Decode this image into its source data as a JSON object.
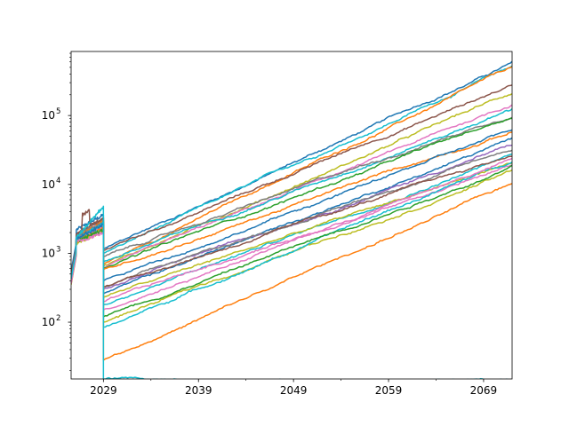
{
  "chart_data": {
    "type": "line",
    "title": "",
    "xlabel": "",
    "ylabel": "",
    "xlim": [
      2025.6,
      2072.0
    ],
    "yscale": "log",
    "ylim": [
      15,
      850000
    ],
    "grid": false,
    "legend": "none",
    "x_ticks": [
      {
        "value": 2029,
        "label": "2029"
      },
      {
        "value": 2039,
        "label": "2039"
      },
      {
        "value": 2049,
        "label": "2049"
      },
      {
        "value": 2059,
        "label": "2059"
      },
      {
        "value": 2069,
        "label": "2069"
      }
    ],
    "y_ticks": [
      {
        "value": 100,
        "base": "10",
        "exp": "2"
      },
      {
        "value": 1000,
        "base": "10",
        "exp": "3"
      },
      {
        "value": 10000,
        "base": "10",
        "exp": "4"
      },
      {
        "value": 100000,
        "base": "10",
        "exp": "5"
      }
    ],
    "colors": [
      "#1f77b4",
      "#ff7f0e",
      "#2ca02c",
      "#d62728",
      "#9467bd",
      "#8c564b",
      "#e377c2",
      "#7f7f7f",
      "#bcbd22",
      "#17becf"
    ],
    "series": [
      {
        "color": "#1f77b4",
        "start": 2200,
        "jump": 3600,
        "v2029": 1150,
        "v2072": 580000,
        "spike": 0
      },
      {
        "color": "#17becf",
        "start": 1800,
        "jump": 3000,
        "v2029": 1000,
        "v2072": 520000,
        "spike": 0
      },
      {
        "color": "#ff7f0e",
        "start": 1700,
        "jump": 2900,
        "v2029": 700,
        "v2072": 480000,
        "spike": 0
      },
      {
        "color": "#8c564b",
        "start": 1900,
        "jump": 3200,
        "v2029": 1100,
        "v2072": 280000,
        "spike": 0
      },
      {
        "color": "#bcbd22",
        "start": 1600,
        "jump": 2700,
        "v2029": 650,
        "v2072": 210000,
        "spike": 0
      },
      {
        "color": "#e377c2",
        "start": 1650,
        "jump": 2800,
        "v2029": 600,
        "v2072": 145000,
        "spike": 0
      },
      {
        "color": "#17becf",
        "start": 1750,
        "jump": 2600,
        "v2029": 750,
        "v2072": 125000,
        "spike": 0
      },
      {
        "color": "#7f7f7f",
        "start": 1850,
        "jump": 3100,
        "v2029": 900,
        "v2072": 105000,
        "spike": 0
      },
      {
        "color": "#2ca02c",
        "start": 1550,
        "jump": 2500,
        "v2029": 620,
        "v2072": 95000,
        "spike": 0
      },
      {
        "color": "#ff7f0e",
        "start": 1700,
        "jump": 2900,
        "v2029": 580,
        "v2072": 60000,
        "spike": 0
      },
      {
        "color": "#1f77b4",
        "start": 1600,
        "jump": 2700,
        "v2029": 260,
        "v2072": 45000,
        "spike": 0
      },
      {
        "color": "#9467bd",
        "start": 1500,
        "jump": 2400,
        "v2029": 300,
        "v2072": 38000,
        "spike": 0
      },
      {
        "color": "#7f7f7f",
        "start": 1650,
        "jump": 2800,
        "v2029": 320,
        "v2072": 33000,
        "spike": 0
      },
      {
        "color": "#17becf",
        "start": 1500,
        "jump": 2300,
        "v2029": 180,
        "v2072": 27000,
        "spike": 0
      },
      {
        "color": "#8c564b",
        "start": 1900,
        "jump": 3300,
        "v2029": 330,
        "v2072": 26000,
        "spike": 1
      },
      {
        "color": "#bcbd22",
        "start": 1450,
        "jump": 2200,
        "v2029": 230,
        "v2072": 21000,
        "spike": 0
      },
      {
        "color": "#e377c2",
        "start": 1550,
        "jump": 2500,
        "v2029": 200,
        "v2072": 19000,
        "spike": 0
      },
      {
        "color": "#bcbd22",
        "start": 1400,
        "jump": 2100,
        "v2029": 100,
        "v2072": 16000,
        "spike": 0
      },
      {
        "color": "#17becf",
        "start": 1600,
        "jump": 2700,
        "v2029": 85,
        "v2072": 22000,
        "spike": 0
      },
      {
        "color": "#ff7f0e",
        "start": 1500,
        "jump": 2300,
        "v2029": 28,
        "v2072": 10000,
        "spike": 0
      },
      {
        "color": "#2ca02c",
        "start": 1500,
        "jump": 2200,
        "v2029": 120,
        "v2072": 18000,
        "spike": 0
      },
      {
        "color": "#1f77b4",
        "start": 1650,
        "jump": 2600,
        "v2029": 400,
        "v2072": 60000,
        "spike": 0
      },
      {
        "color": "#e377c2",
        "start": 1450,
        "jump": 2000,
        "v2029": 150,
        "v2072": 23000,
        "spike": 0
      },
      {
        "color": "#17becf",
        "start": 1700,
        "jump": 4800,
        "v2029": 15,
        "v2072": 15,
        "spike": 0
      }
    ]
  }
}
